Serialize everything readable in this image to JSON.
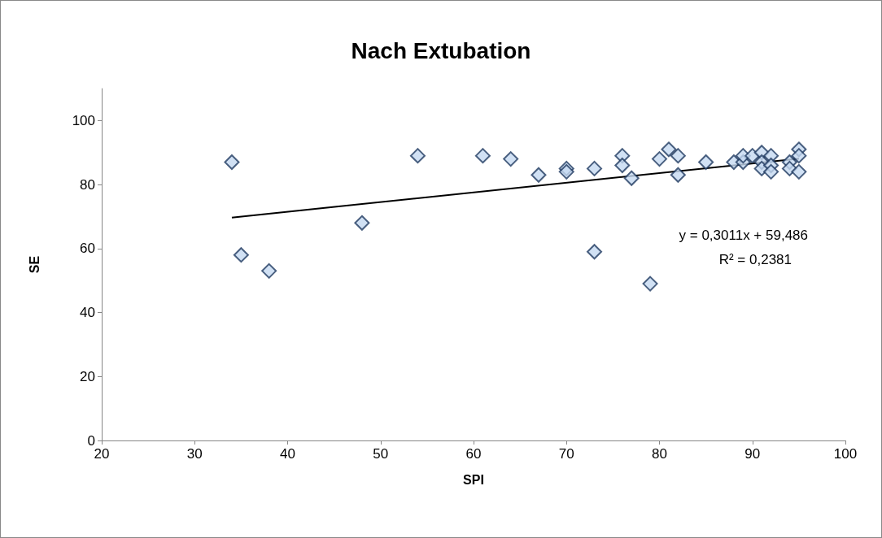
{
  "chart_data": {
    "type": "scatter",
    "title": "Nach Extubation",
    "xlabel": "SPI",
    "ylabel": "SE",
    "xlim": [
      20,
      100
    ],
    "xticks": [
      20,
      30,
      40,
      50,
      60,
      70,
      80,
      90,
      100
    ],
    "ylim": [
      0,
      110
    ],
    "yticks": [
      0,
      20,
      40,
      60,
      80,
      100
    ],
    "grid": false,
    "annotations": [
      "y = 0,3011x + 59,486",
      "R² = 0,2381"
    ],
    "series": [
      {
        "marker": "diamond",
        "color": "#c6d9f1",
        "x": [
          34,
          35,
          38,
          48,
          54,
          61,
          64,
          67,
          70,
          70,
          73,
          73,
          76,
          76,
          77,
          79,
          80,
          81,
          82,
          82,
          85,
          88,
          89,
          89,
          90,
          91,
          91,
          91,
          92,
          92,
          92,
          94,
          94,
          95,
          95,
          95
        ],
        "values": [
          87,
          58,
          53,
          68,
          89,
          89,
          88,
          83,
          85,
          84,
          85,
          59,
          89,
          86,
          82,
          49,
          88,
          91,
          89,
          83,
          87,
          87,
          87,
          89,
          89,
          90,
          87,
          85,
          89,
          86,
          84,
          87,
          85,
          91,
          89,
          84
        ]
      },
      {
        "type": "line",
        "marker": "none",
        "color": "#000000",
        "line_style": "solid",
        "x": [
          34,
          95
        ],
        "values": [
          69.7,
          88.1
        ]
      }
    ]
  }
}
